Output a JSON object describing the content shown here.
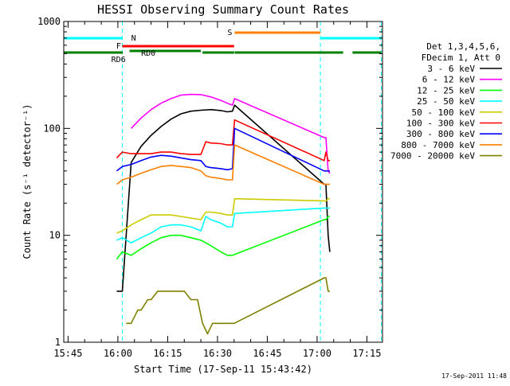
{
  "chart_data": {
    "type": "line",
    "title": "HESSI Observing Summary Count Rates",
    "xlabel": "Start Time (17-Sep-11 15:43:42)",
    "ylabel": "Count Rate (s⁻¹ detector⁻¹)",
    "ylim": [
      1,
      1000
    ],
    "yscale": "log",
    "xlim_minutes_after_start": [
      0,
      96
    ],
    "x_ticks": [
      "15:45",
      "16:00",
      "16:15",
      "16:30",
      "16:45",
      "17:00",
      "17:15"
    ],
    "y_ticks": [
      "1",
      "10",
      "100",
      "1000"
    ],
    "grid": false,
    "legend_position": "right",
    "legend_header": [
      "Det 1,3,4,5,6,",
      "FDecim 1, Att 0"
    ],
    "series": [
      {
        "name": "3 - 6 keV",
        "color": "#000000",
        "x": [
          "15:59:40",
          "16:01:20",
          "16:04:00",
          "16:07:00",
          "16:10:00",
          "16:13:00",
          "16:16:00",
          "16:19:00",
          "16:22:00",
          "16:25:00",
          "16:28:00",
          "16:31:00",
          "16:33:00",
          "16:34:30",
          "16:35:10",
          "17:02:10",
          "17:02:40",
          "17:03:20",
          "17:03:50"
        ],
        "y": [
          3,
          3,
          48,
          68,
          86,
          104,
          122,
          137,
          145,
          148,
          150,
          147,
          143,
          145,
          165,
          30,
          30,
          10,
          7
        ]
      },
      {
        "name": "6 - 12 keV",
        "color": "#ff00ff",
        "x": [
          "16:04:00",
          "16:07:00",
          "16:10:00",
          "16:13:00",
          "16:16:00",
          "16:19:00",
          "16:22:00",
          "16:25:00",
          "16:28:00",
          "16:31:00",
          "16:33:00",
          "16:34:30",
          "16:35:10",
          "17:02:10",
          "17:02:40",
          "17:03:20",
          "17:03:50"
        ],
        "y": [
          100,
          125,
          150,
          172,
          190,
          205,
          208,
          207,
          197,
          183,
          172,
          165,
          190,
          82,
          82,
          40,
          38
        ]
      },
      {
        "name": "12 - 25 keV",
        "color": "#00ff00",
        "x": [
          "15:59:40",
          "16:01:20",
          "16:04:00",
          "16:07:00",
          "16:10:00",
          "16:13:00",
          "16:16:00",
          "16:19:00",
          "16:22:00",
          "16:25:00",
          "16:28:00",
          "16:31:00",
          "16:33:00",
          "16:34:30",
          "17:02:10",
          "17:02:40",
          "17:03:20",
          "17:03:50"
        ],
        "y": [
          6,
          7,
          6.5,
          7.5,
          8.5,
          9.5,
          10,
          10,
          9.5,
          9,
          8,
          7,
          6.5,
          6.5,
          14,
          14,
          15,
          15
        ]
      },
      {
        "name": "25 - 50 keV",
        "color": "#00ffff",
        "x": [
          "15:59:40",
          "16:01:20",
          "16:04:00",
          "16:07:00",
          "16:10:00",
          "16:13:00",
          "16:16:00",
          "16:19:00",
          "16:22:00",
          "16:25:00",
          "16:26:30",
          "16:28:00",
          "16:31:00",
          "16:33:00",
          "16:34:30",
          "16:35:10",
          "17:02:10",
          "17:02:40",
          "17:03:20",
          "17:03:50"
        ],
        "y": [
          9,
          9.5,
          8.5,
          9.5,
          10.5,
          12,
          12.5,
          12.5,
          12,
          11,
          15,
          14,
          13,
          12,
          12,
          16,
          18,
          18,
          18,
          18
        ]
      },
      {
        "name": "50 - 100 keV",
        "color": "#cccc00",
        "x": [
          "15:59:40",
          "16:01:20",
          "16:04:00",
          "16:07:00",
          "16:10:00",
          "16:13:00",
          "16:16:00",
          "16:19:00",
          "16:22:00",
          "16:25:00",
          "16:26:30",
          "16:28:00",
          "16:31:00",
          "16:33:00",
          "16:34:30",
          "16:35:10",
          "17:02:10",
          "17:02:40",
          "17:03:20",
          "17:03:50"
        ],
        "y": [
          10.5,
          11,
          12.5,
          14,
          15.5,
          15.5,
          15.5,
          15,
          14.5,
          14,
          16.5,
          16.5,
          16,
          15.5,
          15.5,
          22,
          21,
          21,
          22,
          22
        ]
      },
      {
        "name": "100 - 300 keV",
        "color": "#ff0000",
        "x": [
          "15:59:40",
          "16:01:20",
          "16:04:00",
          "16:07:00",
          "16:10:00",
          "16:13:00",
          "16:16:00",
          "16:19:00",
          "16:22:00",
          "16:25:00",
          "16:26:30",
          "16:28:00",
          "16:31:00",
          "16:33:00",
          "16:34:30",
          "16:35:10",
          "17:02:10",
          "17:02:40",
          "17:03:20",
          "17:03:50"
        ],
        "y": [
          53,
          60,
          58,
          58,
          58,
          60,
          60,
          58,
          57,
          57,
          75,
          73,
          72,
          70,
          70,
          120,
          50,
          60,
          50,
          50
        ]
      },
      {
        "name": "300 - 800 keV",
        "color": "#0000ff",
        "x": [
          "15:59:40",
          "16:01:20",
          "16:04:00",
          "16:07:00",
          "16:10:00",
          "16:13:00",
          "16:16:00",
          "16:19:00",
          "16:22:00",
          "16:25:00",
          "16:26:30",
          "16:28:00",
          "16:31:00",
          "16:33:00",
          "16:34:30",
          "16:35:10",
          "17:02:10",
          "17:02:40",
          "17:03:20",
          "17:03:50"
        ],
        "y": [
          40,
          44,
          46,
          50,
          54,
          56,
          55,
          53,
          51,
          50,
          44,
          43,
          42,
          41,
          42,
          100,
          40,
          40,
          40,
          40
        ]
      },
      {
        "name": "800 - 7000 keV",
        "color": "#ff8000",
        "x": [
          "15:59:40",
          "16:01:20",
          "16:04:00",
          "16:07:00",
          "16:10:00",
          "16:13:00",
          "16:16:00",
          "16:19:00",
          "16:22:00",
          "16:25:00",
          "16:26:30",
          "16:28:00",
          "16:31:00",
          "16:33:00",
          "16:34:30",
          "16:35:10",
          "17:02:10",
          "17:02:40",
          "17:03:20",
          "17:03:50"
        ],
        "y": [
          30,
          33,
          35,
          38,
          41,
          44,
          45,
          44,
          43,
          40,
          36,
          35,
          34,
          33,
          33,
          70,
          30,
          30,
          30,
          30
        ]
      },
      {
        "name": "7000 - 20000 keV",
        "color": "#808000",
        "x": [
          "16:02:30",
          "16:04:00",
          "16:06:00",
          "16:07:00",
          "16:09:00",
          "16:10:00",
          "16:12:00",
          "16:14:00",
          "16:16:00",
          "16:18:00",
          "16:20:00",
          "16:22:00",
          "16:24:00",
          "16:25:30",
          "16:27:00",
          "16:28:30",
          "16:30:00",
          "16:32:00",
          "16:33:30",
          "16:35:00",
          "17:02:10",
          "17:02:40",
          "17:03:20",
          "17:03:50"
        ],
        "y": [
          1.5,
          1.5,
          2,
          2,
          2.5,
          2.5,
          3,
          3,
          3,
          3,
          3,
          2.5,
          2.5,
          1.5,
          1.2,
          1.5,
          1.5,
          1.5,
          1.5,
          1.5,
          4,
          4,
          3,
          3
        ]
      }
    ],
    "flags": [
      {
        "label": "N",
        "color": "#00ffff",
        "segments": [
          [
            "15:43:42",
            "16:01:20"
          ],
          [
            "17:01:00",
            "17:19:20"
          ]
        ]
      },
      {
        "label": "S",
        "color": "#ff8000",
        "segments": [
          [
            "16:35:10",
            "17:01:00"
          ]
        ]
      },
      {
        "label": "F",
        "color": "#ff0000",
        "segments": [
          [
            "16:01:20",
            "16:35:00"
          ]
        ]
      },
      {
        "label": "RD0",
        "color": "#008000",
        "segments": [
          [
            "16:03:30",
            "16:25:00"
          ]
        ]
      },
      {
        "label": "RD6",
        "color": "#008000",
        "segments": [
          [
            "15:43:42",
            "16:01:30"
          ],
          [
            "16:25:30",
            "16:35:00"
          ],
          [
            "16:35:10",
            "17:01:00"
          ],
          [
            "17:01:00",
            "17:07:50"
          ],
          [
            "17:10:40",
            "17:19:20"
          ]
        ]
      }
    ],
    "timestamp": "17-Sep-2011 11:48"
  },
  "colors": {
    "background": "#ffffff",
    "axes": "#000000",
    "day_night_markers": "#00ffff"
  }
}
